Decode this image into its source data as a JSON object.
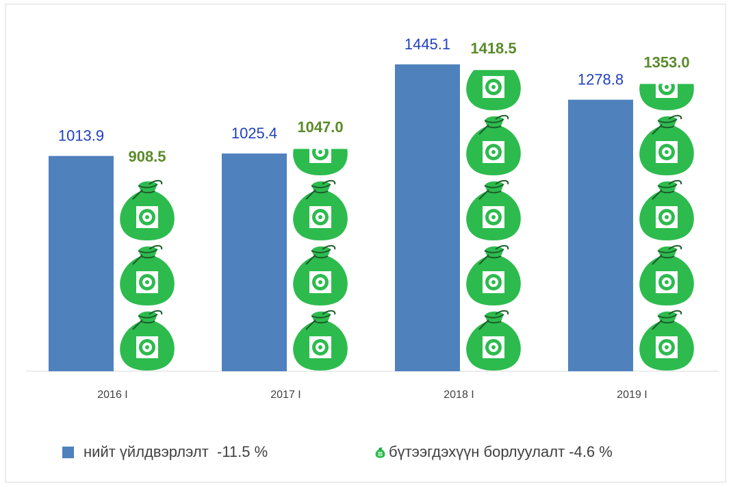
{
  "chart_data": {
    "type": "pictograph-bar",
    "categories": [
      "2016 I",
      "2017 I",
      "2018 I",
      "2019 I"
    ],
    "series": [
      {
        "name": "нийт үйлдвэрлэлт  -11.5 %",
        "color": "#4f81bd",
        "label_color": "#1f3fbf",
        "values": [
          1013.9,
          1025.4,
          1445.1,
          1278.8
        ]
      },
      {
        "name": "бүтээгдэхүүн борлуулалт -4.6 %",
        "color": "#2dbb4e",
        "label_color": "#5a8a2a",
        "values": [
          908.5,
          1047.0,
          1418.5,
          1353.0
        ],
        "value_labels": [
          "908.5",
          "1047.0",
          "1418.5",
          "1353.0"
        ]
      }
    ],
    "legend": "bottom"
  }
}
